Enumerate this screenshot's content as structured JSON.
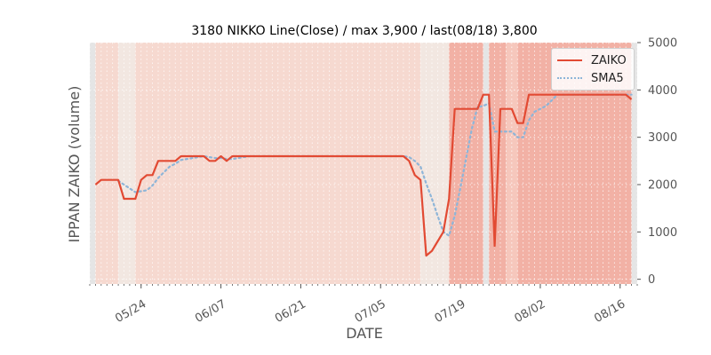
{
  "chart_data": {
    "type": "line",
    "title": "3180 NIKKO Line(Close) / max 3,900 / last(08/18) 3,800",
    "xlabel": "DATE",
    "ylabel": "IPPAN ZAIKO (volume)",
    "ylim": [
      -100,
      5000
    ],
    "yticks": [
      0,
      1000,
      2000,
      3000,
      4000,
      5000
    ],
    "ytick_labels": [
      "0",
      "1000",
      "2000",
      "3000",
      "4000",
      "5000"
    ],
    "y_axis_side": "right",
    "xlim": [
      "2021-05-15",
      "2021-08-19"
    ],
    "xticks": [
      "2021-05-24",
      "2021-06-07",
      "2021-06-21",
      "2021-07-05",
      "2021-07-19",
      "2021-08-02",
      "2021-08-16"
    ],
    "xtick_labels": [
      "05/24",
      "06/07",
      "06/21",
      "07/05",
      "07/19",
      "08/02",
      "08/16"
    ],
    "grid": true,
    "legend": "top-right",
    "series": [
      {
        "name": "ZAIKO",
        "color": "#e24a33",
        "style": "solid",
        "x": [
          "2021-05-16",
          "2021-05-17",
          "2021-05-18",
          "2021-05-19",
          "2021-05-20",
          "2021-05-21",
          "2021-05-22",
          "2021-05-23",
          "2021-05-24",
          "2021-05-25",
          "2021-05-26",
          "2021-05-27",
          "2021-05-28",
          "2021-05-29",
          "2021-05-30",
          "2021-05-31",
          "2021-06-01",
          "2021-06-02",
          "2021-06-03",
          "2021-06-04",
          "2021-06-05",
          "2021-06-06",
          "2021-06-07",
          "2021-06-08",
          "2021-06-09",
          "2021-06-10",
          "2021-06-11",
          "2021-06-12",
          "2021-06-13",
          "2021-06-14",
          "2021-06-15",
          "2021-06-16",
          "2021-06-17",
          "2021-06-18",
          "2021-06-19",
          "2021-06-20",
          "2021-06-21",
          "2021-06-22",
          "2021-06-23",
          "2021-06-24",
          "2021-06-25",
          "2021-06-26",
          "2021-06-27",
          "2021-06-28",
          "2021-06-29",
          "2021-06-30",
          "2021-07-01",
          "2021-07-02",
          "2021-07-03",
          "2021-07-04",
          "2021-07-05",
          "2021-07-06",
          "2021-07-07",
          "2021-07-08",
          "2021-07-09",
          "2021-07-10",
          "2021-07-11",
          "2021-07-12",
          "2021-07-13",
          "2021-07-14",
          "2021-07-15",
          "2021-07-16",
          "2021-07-17",
          "2021-07-18",
          "2021-07-19",
          "2021-07-20",
          "2021-07-21",
          "2021-07-22",
          "2021-07-23",
          "2021-07-24",
          "2021-07-25",
          "2021-07-26",
          "2021-07-27",
          "2021-07-28",
          "2021-07-29",
          "2021-07-30",
          "2021-07-31",
          "2021-08-01",
          "2021-08-02",
          "2021-08-03",
          "2021-08-04",
          "2021-08-05",
          "2021-08-06",
          "2021-08-07",
          "2021-08-08",
          "2021-08-09",
          "2021-08-10",
          "2021-08-11",
          "2021-08-12",
          "2021-08-13",
          "2021-08-14",
          "2021-08-15",
          "2021-08-16",
          "2021-08-17",
          "2021-08-18"
        ],
        "values": [
          2000,
          2100,
          2100,
          2100,
          2100,
          1700,
          1700,
          1700,
          2100,
          2200,
          2200,
          2500,
          2500,
          2500,
          2500,
          2600,
          2600,
          2600,
          2600,
          2600,
          2500,
          2500,
          2600,
          2500,
          2600,
          2600,
          2600,
          2600,
          2600,
          2600,
          2600,
          2600,
          2600,
          2600,
          2600,
          2600,
          2600,
          2600,
          2600,
          2600,
          2600,
          2600,
          2600,
          2600,
          2600,
          2600,
          2600,
          2600,
          2600,
          2600,
          2600,
          2600,
          2600,
          2600,
          2600,
          2500,
          2200,
          2100,
          500,
          600,
          800,
          1000,
          1700,
          3600,
          3600,
          3600,
          3600,
          3600,
          3900,
          3900,
          700,
          3600,
          3600,
          3600,
          3300,
          3300,
          3900,
          3900,
          3900,
          3900,
          3900,
          3900,
          3900,
          3900,
          3900,
          3900,
          3900,
          3900,
          3900,
          3900,
          3900,
          3900,
          3900,
          3900,
          3800
        ]
      },
      {
        "name": "SMA5",
        "color": "#8eb5d8",
        "style": "dotted",
        "x": [
          "2021-05-20",
          "2021-05-21",
          "2021-05-22",
          "2021-05-23",
          "2021-05-24",
          "2021-05-25",
          "2021-05-26",
          "2021-05-27",
          "2021-05-28",
          "2021-05-29",
          "2021-05-30",
          "2021-05-31",
          "2021-06-01",
          "2021-06-02",
          "2021-06-03",
          "2021-06-04",
          "2021-06-05",
          "2021-06-06",
          "2021-06-07",
          "2021-06-08",
          "2021-06-09",
          "2021-06-10",
          "2021-06-11",
          "2021-06-12",
          "2021-06-13",
          "2021-06-14",
          "2021-06-15",
          "2021-06-16",
          "2021-06-17",
          "2021-06-18",
          "2021-06-19",
          "2021-06-20",
          "2021-06-21",
          "2021-06-22",
          "2021-06-23",
          "2021-06-24",
          "2021-06-25",
          "2021-06-26",
          "2021-06-27",
          "2021-06-28",
          "2021-06-29",
          "2021-06-30",
          "2021-07-01",
          "2021-07-02",
          "2021-07-03",
          "2021-07-04",
          "2021-07-05",
          "2021-07-06",
          "2021-07-07",
          "2021-07-08",
          "2021-07-09",
          "2021-07-10",
          "2021-07-11",
          "2021-07-12",
          "2021-07-13",
          "2021-07-14",
          "2021-07-15",
          "2021-07-16",
          "2021-07-17",
          "2021-07-18",
          "2021-07-19",
          "2021-07-20",
          "2021-07-21",
          "2021-07-22",
          "2021-07-23",
          "2021-07-24",
          "2021-07-25",
          "2021-07-26",
          "2021-07-27",
          "2021-07-28",
          "2021-07-29",
          "2021-07-30",
          "2021-07-31",
          "2021-08-01",
          "2021-08-02",
          "2021-08-03",
          "2021-08-04",
          "2021-08-05",
          "2021-08-06",
          "2021-08-07",
          "2021-08-08",
          "2021-08-09",
          "2021-08-10",
          "2021-08-11",
          "2021-08-12",
          "2021-08-13",
          "2021-08-14",
          "2021-08-15",
          "2021-08-16",
          "2021-08-17",
          "2021-08-18"
        ],
        "values": [
          2080,
          2000,
          1920,
          1840,
          1860,
          1880,
          1980,
          2140,
          2260,
          2380,
          2440,
          2520,
          2540,
          2560,
          2580,
          2600,
          2580,
          2560,
          2560,
          2540,
          2540,
          2560,
          2580,
          2600,
          2600,
          2600,
          2600,
          2600,
          2600,
          2600,
          2600,
          2600,
          2600,
          2600,
          2600,
          2600,
          2600,
          2600,
          2600,
          2600,
          2600,
          2600,
          2600,
          2600,
          2600,
          2600,
          2600,
          2600,
          2600,
          2600,
          2600,
          2580,
          2500,
          2380,
          2020,
          1700,
          1340,
          1000,
          920,
          1340,
          1940,
          2560,
          3180,
          3640,
          3660,
          3720,
          3120,
          3120,
          3120,
          3120,
          3000,
          3000,
          3360,
          3540,
          3600,
          3660,
          3780,
          3900,
          3900,
          3900,
          3900,
          3900,
          3900,
          3900,
          3900,
          3900,
          3900,
          3900,
          3900,
          3900,
          3900
        ]
      }
    ],
    "background_bands": [
      {
        "from": "2021-05-15",
        "to": "2021-05-16",
        "color": "#e5e5e5"
      },
      {
        "from": "2021-05-16",
        "to": "2021-05-20",
        "color": "#f6d9d0"
      },
      {
        "from": "2021-05-20",
        "to": "2021-05-23",
        "color": "#f2e7e1"
      },
      {
        "from": "2021-05-23",
        "to": "2021-07-12",
        "color": "#f6d9d0"
      },
      {
        "from": "2021-07-12",
        "to": "2021-07-17",
        "color": "#f2e7e1"
      },
      {
        "from": "2021-07-17",
        "to": "2021-07-23",
        "color": "#f2b1a5"
      },
      {
        "from": "2021-07-23",
        "to": "2021-07-24",
        "color": "#e5e5e5"
      },
      {
        "from": "2021-07-24",
        "to": "2021-07-27",
        "color": "#f2b1a5"
      },
      {
        "from": "2021-07-27",
        "to": "2021-07-29",
        "color": "#f6c7bc"
      },
      {
        "from": "2021-07-29",
        "to": "2021-08-18",
        "color": "#f2b1a5"
      },
      {
        "from": "2021-08-18",
        "to": "2021-08-19",
        "color": "#e5e5e5"
      }
    ]
  }
}
